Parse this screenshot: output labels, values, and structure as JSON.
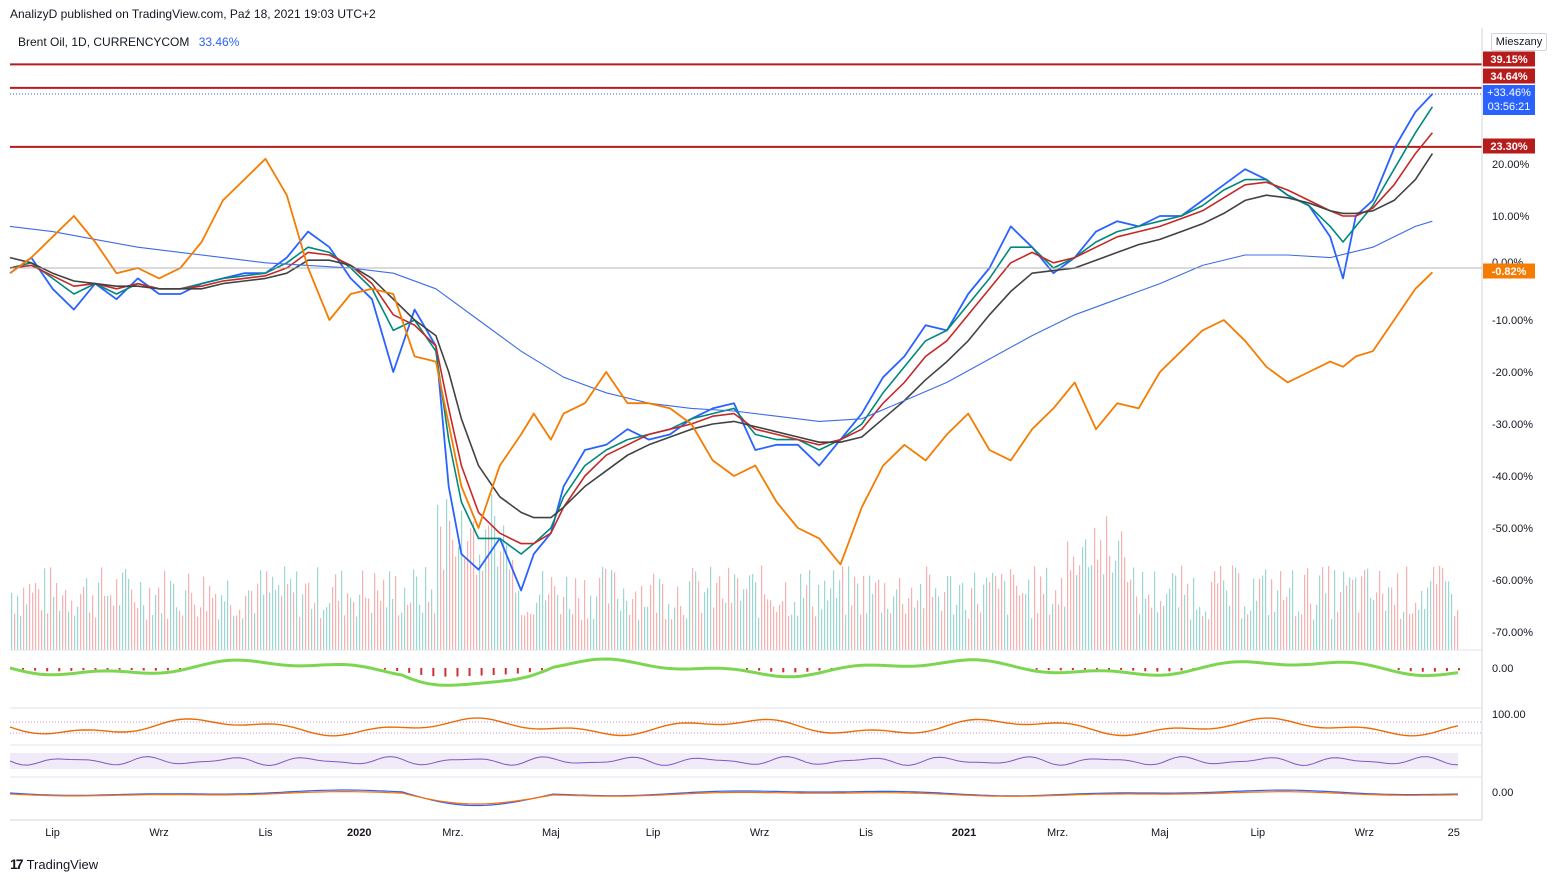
{
  "header": {
    "published": "AnalizyD published on TradingView.com, Paź 18, 2021 19:03 UTC+2",
    "symbol": "Brent Oil, 1D, CURRENCYCOM",
    "change": "33.46%",
    "scale_mode": "Mieszany"
  },
  "footer": {
    "brand": "TradingView"
  },
  "chart_data": {
    "type": "line",
    "title": "Brent Oil, 1D, CURRENCYCOM",
    "y_unit": "%",
    "ylim": [
      -74,
      43
    ],
    "y_ticks": [
      20,
      10,
      0,
      -10,
      -20,
      -30,
      -40,
      -50,
      -60,
      -70
    ],
    "y_tick_labels": [
      "20.00%",
      "10.00%",
      "0.00%",
      "-10.00%",
      "-20.00%",
      "-30.00%",
      "-40.00%",
      "-50.00%",
      "-60.00%",
      "-70.00%"
    ],
    "x_range_index": [
      0,
      34
    ],
    "x_ticks": [
      {
        "label": "Lip",
        "i": 1
      },
      {
        "label": "Wrz",
        "i": 3.5
      },
      {
        "label": "Lis",
        "i": 6
      },
      {
        "label": "2020",
        "i": 8.2
      },
      {
        "label": "Mrz.",
        "i": 10.4
      },
      {
        "label": "Maj",
        "i": 12.7
      },
      {
        "label": "Lip",
        "i": 15.1
      },
      {
        "label": "Wrz",
        "i": 17.6
      },
      {
        "label": "Lis",
        "i": 20.1
      },
      {
        "label": "2021",
        "i": 22.4
      },
      {
        "label": "Mrz.",
        "i": 24.6
      },
      {
        "label": "Maj",
        "i": 27
      },
      {
        "label": "Lip",
        "i": 29.3
      },
      {
        "label": "Wrz",
        "i": 31.8
      },
      {
        "label": "25",
        "i": 33.9
      }
    ],
    "horizontal_levels": [
      {
        "value": 39.15,
        "label": "39.15%",
        "color": "#b71c1c"
      },
      {
        "value": 34.64,
        "label": "34.64%",
        "color": "#b71c1c"
      },
      {
        "value": 23.3,
        "label": "23.30%",
        "color": "#b71c1c"
      }
    ],
    "price_label": {
      "value": 33.46,
      "label": "+33.46%",
      "countdown": "03:56:21",
      "color": "#2962ff"
    },
    "compare_label": {
      "value": -0.82,
      "label": "-0.82%",
      "color": "#f57c00"
    },
    "zero_label": "0.00%",
    "series": [
      {
        "color": "#2962ff",
        "x": [
          0,
          0.5,
          1,
          1.5,
          2,
          2.5,
          3,
          3.5,
          4,
          4.5,
          5,
          5.5,
          6,
          6.5,
          7,
          7.5,
          8,
          8.5,
          9,
          9.5,
          10,
          10.3,
          10.6,
          11,
          11.5,
          12,
          12.3,
          12.7,
          13,
          13.5,
          14,
          14.5,
          15,
          15.5,
          16,
          16.5,
          17,
          17.5,
          18,
          18.5,
          19,
          19.5,
          20,
          20.5,
          21,
          21.5,
          22,
          22.5,
          23,
          23.5,
          24,
          24.5,
          25,
          25.5,
          26,
          26.5,
          27,
          27.5,
          28,
          28.5,
          29,
          29.5,
          30,
          30.5,
          31,
          31.3,
          31.6,
          32,
          32.5,
          33,
          33.4
        ],
        "values": [
          -1,
          2,
          -4,
          -8,
          -3,
          -6,
          -2,
          -5,
          -5,
          -3,
          -2,
          -1,
          -1,
          2,
          7,
          4,
          -2,
          -6,
          -20,
          -8,
          -15,
          -42,
          -55,
          -58,
          -52,
          -62,
          -55,
          -51,
          -42,
          -35,
          -34,
          -31,
          -33,
          -32,
          -29,
          -27,
          -26,
          -35,
          -34,
          -34,
          -38,
          -33,
          -28,
          -21,
          -17,
          -11,
          -12,
          -5,
          0,
          8,
          4,
          -1,
          2,
          7,
          9,
          8,
          10,
          10,
          13,
          16,
          19,
          17,
          14,
          12,
          6,
          -2,
          10,
          13,
          23,
          30,
          33.46
        ]
      },
      {
        "color": "#00897b",
        "x": [
          0,
          0.5,
          1,
          1.5,
          2,
          2.5,
          3,
          3.5,
          4,
          4.5,
          5,
          5.5,
          6,
          6.5,
          7,
          7.5,
          8,
          8.5,
          9,
          9.5,
          10,
          10.3,
          10.6,
          11,
          11.5,
          12,
          12.3,
          12.7,
          13,
          13.5,
          14,
          14.5,
          15,
          15.5,
          16,
          16.5,
          17,
          17.5,
          18,
          18.5,
          19,
          19.5,
          20,
          20.5,
          21,
          21.5,
          22,
          22.5,
          23,
          23.5,
          24,
          24.5,
          25,
          25.5,
          26,
          26.5,
          27,
          27.5,
          28,
          28.5,
          29,
          29.5,
          30,
          30.5,
          31,
          31.3,
          31.6,
          32,
          32.5,
          33,
          33.4
        ],
        "values": [
          0,
          1,
          -2,
          -5,
          -3,
          -5,
          -3,
          -4,
          -4,
          -3,
          -2,
          -1.5,
          -1,
          1,
          4,
          3,
          0,
          -4,
          -12,
          -10,
          -16,
          -33,
          -45,
          -52,
          -52,
          -55,
          -53,
          -50,
          -44,
          -38,
          -35,
          -33,
          -32,
          -31,
          -29,
          -28,
          -27,
          -32,
          -33,
          -33,
          -35,
          -33,
          -30,
          -24,
          -19,
          -14,
          -12,
          -7,
          -2,
          4,
          4,
          0,
          2,
          5,
          7,
          8,
          9,
          10,
          12,
          15,
          17,
          17,
          14,
          12,
          8,
          5,
          8,
          12,
          19,
          26,
          31
        ]
      },
      {
        "color": "#c62828",
        "x": [
          0,
          0.5,
          1,
          1.5,
          2,
          2.5,
          3,
          3.5,
          4,
          4.5,
          5,
          5.5,
          6,
          6.5,
          7,
          7.5,
          8,
          8.5,
          9,
          9.5,
          10,
          10.3,
          10.6,
          11,
          11.5,
          12,
          12.3,
          12.7,
          13,
          13.5,
          14,
          14.5,
          15,
          15.5,
          16,
          16.5,
          17,
          17.5,
          18,
          18.5,
          19,
          19.5,
          20,
          20.5,
          21,
          21.5,
          22,
          22.5,
          23,
          23.5,
          24,
          24.5,
          25,
          25.5,
          26,
          26.5,
          27,
          27.5,
          28,
          28.5,
          29,
          29.5,
          30,
          30.5,
          31,
          31.3,
          31.6,
          32,
          32.5,
          33,
          33.4
        ],
        "values": [
          0,
          0.5,
          -1.5,
          -3.5,
          -3,
          -4,
          -3,
          -4,
          -4,
          -3.5,
          -2.5,
          -2,
          -1.5,
          0,
          3,
          2.5,
          0.5,
          -3,
          -9,
          -11,
          -15,
          -27,
          -38,
          -47,
          -51,
          -53,
          -53,
          -51,
          -46,
          -40,
          -36,
          -34,
          -32,
          -31,
          -30,
          -28.5,
          -28,
          -31,
          -32,
          -33,
          -34,
          -33,
          -31,
          -26,
          -22,
          -17,
          -14,
          -9,
          -4,
          1,
          3,
          1,
          2,
          4,
          6,
          7,
          8,
          9.5,
          11,
          13.5,
          16,
          16.5,
          15,
          13,
          11,
          10,
          10,
          11.5,
          16,
          22,
          26
        ]
      },
      {
        "color": "#424242",
        "x": [
          0,
          0.5,
          1,
          1.5,
          2,
          2.5,
          3,
          3.5,
          4,
          4.5,
          5,
          5.5,
          6,
          6.5,
          7,
          7.5,
          8,
          8.5,
          9,
          9.5,
          10,
          10.3,
          10.6,
          11,
          11.5,
          12,
          12.3,
          12.7,
          13,
          13.5,
          14,
          14.5,
          15,
          15.5,
          16,
          16.5,
          17,
          17.5,
          18,
          18.5,
          19,
          19.5,
          20,
          20.5,
          21,
          21.5,
          22,
          22.5,
          23,
          23.5,
          24,
          24.5,
          25,
          25.5,
          26,
          26.5,
          27,
          27.5,
          28,
          28.5,
          29,
          29.5,
          30,
          30.5,
          31,
          31.3,
          31.6,
          32,
          32.5,
          33,
          33.4
        ],
        "values": [
          2,
          1,
          -1,
          -2.5,
          -3,
          -3.5,
          -3.5,
          -4,
          -4,
          -4,
          -3,
          -2.5,
          -2,
          -1,
          1.5,
          1.5,
          0.5,
          -2,
          -6,
          -10,
          -13,
          -20,
          -29,
          -38,
          -44,
          -47,
          -48,
          -48,
          -46,
          -42,
          -39,
          -36,
          -34,
          -32.5,
          -31,
          -30,
          -29.5,
          -30.5,
          -31.5,
          -32.5,
          -33.5,
          -33.5,
          -32.5,
          -29,
          -25.5,
          -21.5,
          -18,
          -14,
          -9,
          -4.5,
          -1,
          -0.5,
          0,
          1.5,
          3,
          4.5,
          5.5,
          7,
          8.5,
          10.5,
          13,
          14,
          13.5,
          12.5,
          11,
          10.5,
          10.5,
          11,
          13,
          17,
          22
        ]
      },
      {
        "color": "#3d6ce8",
        "x": [
          0,
          1,
          2,
          3,
          4,
          5,
          6,
          7,
          8,
          9,
          10,
          11,
          12,
          13,
          14,
          15,
          16,
          17,
          18,
          19,
          20,
          21,
          22,
          23,
          24,
          25,
          26,
          27,
          28,
          29,
          30,
          31,
          32,
          33,
          33.4
        ],
        "values": [
          8,
          7,
          5.5,
          4,
          3,
          2,
          1,
          0.5,
          0,
          -1,
          -4,
          -10,
          -16,
          -21,
          -24,
          -26,
          -27,
          -27.5,
          -28.5,
          -29.5,
          -29,
          -25.5,
          -22,
          -17.5,
          -13,
          -9,
          -6,
          -3,
          0.5,
          2.5,
          2.5,
          2,
          4,
          8,
          9
        ]
      },
      {
        "color": "#f57c00",
        "x": [
          0,
          0.5,
          1,
          1.5,
          2,
          2.5,
          3,
          3.5,
          4,
          4.5,
          5,
          5.5,
          6,
          6.5,
          7,
          7.5,
          8,
          8.5,
          9,
          9.5,
          10,
          10.3,
          10.6,
          11,
          11.5,
          12,
          12.3,
          12.7,
          13,
          13.5,
          14,
          14.5,
          15,
          15.5,
          16,
          16.5,
          17,
          17.5,
          18,
          18.5,
          19,
          19.5,
          20,
          20.5,
          21,
          21.5,
          22,
          22.5,
          23,
          23.5,
          24,
          24.5,
          25,
          25.5,
          26,
          26.5,
          27,
          27.5,
          28,
          28.5,
          29,
          29.5,
          30,
          30.5,
          31,
          31.3,
          31.6,
          32,
          32.5,
          33,
          33.4
        ],
        "values": [
          -1,
          2,
          6,
          10,
          5,
          -1,
          0,
          -2,
          0,
          5,
          13,
          17,
          21,
          14,
          0,
          -10,
          -5,
          -4,
          -5,
          -17,
          -18,
          -30,
          -42,
          -50,
          -38,
          -32,
          -28,
          -33,
          -28,
          -26,
          -20,
          -26,
          -26,
          -27,
          -30,
          -37,
          -40,
          -38,
          -45,
          -50,
          -52,
          -57,
          -46,
          -38,
          -34,
          -37,
          -32,
          -28,
          -35,
          -37,
          -31,
          -27,
          -22,
          -31,
          -26,
          -27,
          -20,
          -16,
          -12,
          -10,
          -14,
          -19,
          -22,
          -20,
          -18,
          -19,
          -17,
          -16,
          -10,
          -4,
          -0.82
        ]
      }
    ]
  }
}
